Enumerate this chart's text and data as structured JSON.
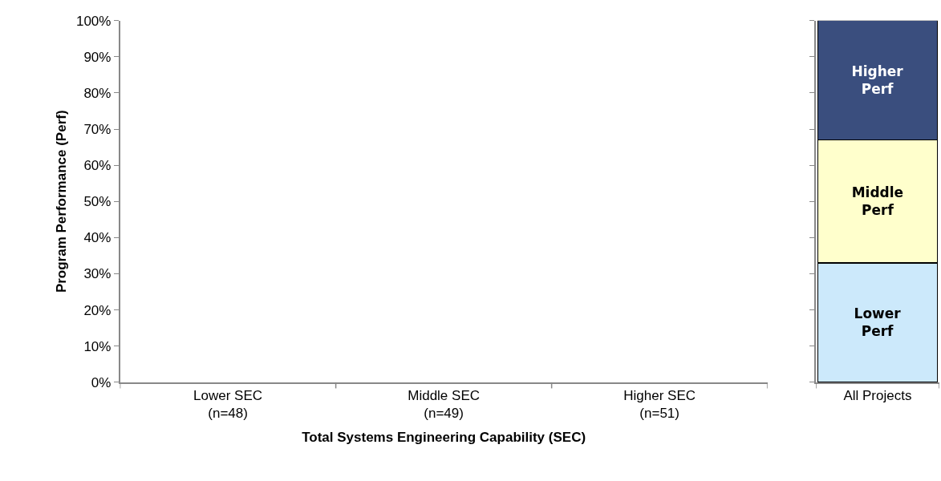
{
  "chart_data": [
    {
      "type": "bar",
      "xlabel": "Total Systems Engineering Capability (SEC)",
      "ylabel": "Program Performance (Perf)",
      "categories": [
        "Lower SEC\n(n=48)",
        "Middle SEC\n(n=49)",
        "Higher SEC\n(n=51)"
      ],
      "values": [
        null,
        null,
        null
      ],
      "ylim": [
        0,
        100
      ],
      "yticks": [
        {
          "value": 0,
          "label": "0%"
        },
        {
          "value": 10,
          "label": "10%"
        },
        {
          "value": 20,
          "label": "20%"
        },
        {
          "value": 30,
          "label": "30%"
        },
        {
          "value": 40,
          "label": "40%"
        },
        {
          "value": 50,
          "label": "50%"
        },
        {
          "value": 60,
          "label": "60%"
        },
        {
          "value": 70,
          "label": "70%"
        },
        {
          "value": 80,
          "label": "80%"
        },
        {
          "value": 90,
          "label": "90%"
        },
        {
          "value": 100,
          "label": "100%"
        }
      ]
    },
    {
      "type": "bar",
      "stacked": true,
      "categories": [
        "All Projects"
      ],
      "series": [
        {
          "name": "Lower Perf",
          "color": "#cce9fb",
          "values": [
            33
          ]
        },
        {
          "name": "Middle Perf",
          "color": "#ffffcc",
          "values": [
            34
          ]
        },
        {
          "name": "Higher Perf",
          "color": "#3a4e7e",
          "values": [
            33
          ]
        }
      ],
      "ylim": [
        0,
        100
      ],
      "yticks": [
        {
          "value": 0,
          "label": null
        },
        {
          "value": 10,
          "label": null
        },
        {
          "value": 20,
          "label": null
        },
        {
          "value": 30,
          "label": null
        },
        {
          "value": 40,
          "label": null
        },
        {
          "value": 50,
          "label": null
        },
        {
          "value": 60,
          "label": null
        },
        {
          "value": 70,
          "label": null
        },
        {
          "value": 80,
          "label": null
        },
        {
          "value": 90,
          "label": null
        },
        {
          "value": 100,
          "label": null
        }
      ],
      "tick_labels": "x"
    }
  ]
}
